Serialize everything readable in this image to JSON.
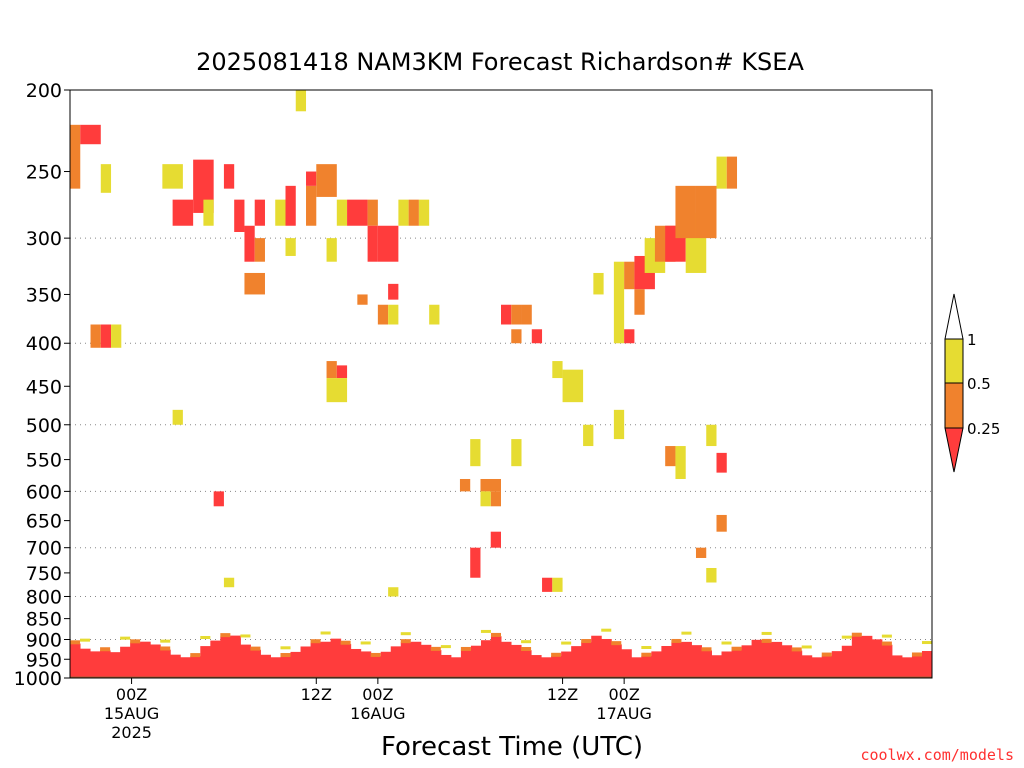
{
  "chart_data": {
    "type": "heatmap",
    "title": "2025081418 NAM3KM Forecast Richardson# KSEA",
    "xlabel": "Forecast Time (UTC)",
    "ylabel": "",
    "y_scale": "log",
    "y_reversed": true,
    "ylim": [
      1000,
      200
    ],
    "y_ticks": [
      200,
      250,
      300,
      350,
      400,
      450,
      500,
      550,
      600,
      650,
      700,
      750,
      800,
      850,
      900,
      950,
      1000
    ],
    "grid_levels": [
      300,
      400,
      500,
      600,
      700,
      800,
      900
    ],
    "x_range_hours": [
      0,
      84
    ],
    "x_ticks": [
      {
        "hour": 6,
        "lines": [
          "00Z",
          "15AUG",
          "2025"
        ]
      },
      {
        "hour": 24,
        "lines": [
          "12Z",
          "",
          ""
        ]
      },
      {
        "hour": 30,
        "lines": [
          "00Z",
          "16AUG",
          ""
        ]
      },
      {
        "hour": 48,
        "lines": [
          "12Z",
          "",
          ""
        ]
      },
      {
        "hour": 54,
        "lines": [
          "00Z",
          "17AUG",
          ""
        ]
      }
    ],
    "legend": {
      "placement": "right",
      "labels": [
        "1",
        "0.5",
        "0.25"
      ],
      "bins": [
        {
          "range": "0.5-1",
          "color": "#e6dc32"
        },
        {
          "range": "0.25-0.5",
          "color": "#f0822d"
        },
        {
          "range": "<0.25",
          "color": "#ff3c3c"
        },
        {
          "range": ">1",
          "color": "#ffffff"
        }
      ]
    },
    "ground_color": "#a0522d",
    "patches": [
      {
        "t": [
          0,
          1
        ],
        "p": [
          220,
          262
        ],
        "c": "orange"
      },
      {
        "t": [
          1,
          3
        ],
        "p": [
          220,
          232
        ],
        "c": "red"
      },
      {
        "t": [
          3,
          4
        ],
        "p": [
          245,
          265
        ],
        "c": "yellow"
      },
      {
        "t": [
          2,
          3
        ],
        "p": [
          380,
          405
        ],
        "c": "orange"
      },
      {
        "t": [
          3,
          4
        ],
        "p": [
          380,
          405
        ],
        "c": "red"
      },
      {
        "t": [
          4,
          5
        ],
        "p": [
          380,
          405
        ],
        "c": "yellow"
      },
      {
        "t": [
          9,
          11
        ],
        "p": [
          245,
          262
        ],
        "c": "yellow"
      },
      {
        "t": [
          10,
          12
        ],
        "p": [
          270,
          290
        ],
        "c": "red"
      },
      {
        "t": [
          12,
          14
        ],
        "p": [
          242,
          280
        ],
        "c": "red"
      },
      {
        "t": [
          13,
          14
        ],
        "p": [
          270,
          290
        ],
        "c": "yellow"
      },
      {
        "t": [
          15,
          16
        ],
        "p": [
          245,
          262
        ],
        "c": "red"
      },
      {
        "t": [
          16,
          17
        ],
        "p": [
          270,
          295
        ],
        "c": "red"
      },
      {
        "t": [
          17,
          18
        ],
        "p": [
          290,
          320
        ],
        "c": "red"
      },
      {
        "t": [
          17,
          19
        ],
        "p": [
          330,
          350
        ],
        "c": "orange"
      },
      {
        "t": [
          18,
          19
        ],
        "p": [
          270,
          290
        ],
        "c": "red"
      },
      {
        "t": [
          18,
          19
        ],
        "p": [
          300,
          320
        ],
        "c": "orange"
      },
      {
        "t": [
          20,
          21
        ],
        "p": [
          270,
          290
        ],
        "c": "yellow"
      },
      {
        "t": [
          21,
          22
        ],
        "p": [
          260,
          290
        ],
        "c": "red"
      },
      {
        "t": [
          21,
          22
        ],
        "p": [
          300,
          315
        ],
        "c": "yellow"
      },
      {
        "t": [
          22,
          23
        ],
        "p": [
          200,
          212
        ],
        "c": "yellow"
      },
      {
        "t": [
          23,
          24
        ],
        "p": [
          260,
          290
        ],
        "c": "orange"
      },
      {
        "t": [
          23,
          24
        ],
        "p": [
          250,
          260
        ],
        "c": "red"
      },
      {
        "t": [
          24,
          26
        ],
        "p": [
          245,
          268
        ],
        "c": "orange"
      },
      {
        "t": [
          25,
          26
        ],
        "p": [
          300,
          320
        ],
        "c": "yellow"
      },
      {
        "t": [
          26,
          27
        ],
        "p": [
          270,
          290
        ],
        "c": "yellow"
      },
      {
        "t": [
          27,
          29
        ],
        "p": [
          270,
          290
        ],
        "c": "red"
      },
      {
        "t": [
          29,
          30
        ],
        "p": [
          270,
          290
        ],
        "c": "orange"
      },
      {
        "t": [
          29,
          30
        ],
        "p": [
          290,
          320
        ],
        "c": "red"
      },
      {
        "t": [
          30,
          32
        ],
        "p": [
          290,
          320
        ],
        "c": "red"
      },
      {
        "t": [
          32,
          33
        ],
        "p": [
          270,
          290
        ],
        "c": "yellow"
      },
      {
        "t": [
          33,
          34
        ],
        "p": [
          270,
          290
        ],
        "c": "orange"
      },
      {
        "t": [
          34,
          35
        ],
        "p": [
          270,
          290
        ],
        "c": "yellow"
      },
      {
        "t": [
          28,
          29
        ],
        "p": [
          350,
          360
        ],
        "c": "orange"
      },
      {
        "t": [
          25,
          26
        ],
        "p": [
          420,
          440
        ],
        "c": "orange"
      },
      {
        "t": [
          26,
          27
        ],
        "p": [
          425,
          440
        ],
        "c": "red"
      },
      {
        "t": [
          25,
          27
        ],
        "p": [
          440,
          470
        ],
        "c": "yellow"
      },
      {
        "t": [
          31,
          32
        ],
        "p": [
          340,
          355
        ],
        "c": "red"
      },
      {
        "t": [
          30,
          31
        ],
        "p": [
          360,
          380
        ],
        "c": "orange"
      },
      {
        "t": [
          31,
          32
        ],
        "p": [
          360,
          380
        ],
        "c": "yellow"
      },
      {
        "t": [
          35,
          36
        ],
        "p": [
          360,
          380
        ],
        "c": "yellow"
      },
      {
        "t": [
          42,
          43
        ],
        "p": [
          360,
          380
        ],
        "c": "red"
      },
      {
        "t": [
          43,
          44
        ],
        "p": [
          360,
          380
        ],
        "c": "orange"
      },
      {
        "t": [
          44,
          45
        ],
        "p": [
          360,
          380
        ],
        "c": "orange"
      },
      {
        "t": [
          45,
          46
        ],
        "p": [
          385,
          400
        ],
        "c": "red"
      },
      {
        "t": [
          43,
          44
        ],
        "p": [
          385,
          400
        ],
        "c": "orange"
      },
      {
        "t": [
          47,
          48
        ],
        "p": [
          420,
          440
        ],
        "c": "yellow"
      },
      {
        "t": [
          48,
          50
        ],
        "p": [
          430,
          470
        ],
        "c": "yellow"
      },
      {
        "t": [
          51,
          52
        ],
        "p": [
          330,
          350
        ],
        "c": "yellow"
      },
      {
        "t": [
          53,
          54
        ],
        "p": [
          320,
          400
        ],
        "c": "yellow"
      },
      {
        "t": [
          54,
          55
        ],
        "p": [
          320,
          345
        ],
        "c": "orange"
      },
      {
        "t": [
          54,
          55
        ],
        "p": [
          385,
          400
        ],
        "c": "red"
      },
      {
        "t": [
          55,
          56
        ],
        "p": [
          345,
          370
        ],
        "c": "orange"
      },
      {
        "t": [
          55,
          57
        ],
        "p": [
          315,
          345
        ],
        "c": "red"
      },
      {
        "t": [
          56,
          58
        ],
        "p": [
          300,
          330
        ],
        "c": "yellow"
      },
      {
        "t": [
          57,
          59
        ],
        "p": [
          290,
          320
        ],
        "c": "orange"
      },
      {
        "t": [
          58,
          60
        ],
        "p": [
          290,
          320
        ],
        "c": "red"
      },
      {
        "t": [
          60,
          62
        ],
        "p": [
          280,
          330
        ],
        "c": "yellow"
      },
      {
        "t": [
          59,
          61
        ],
        "p": [
          260,
          300
        ],
        "c": "orange"
      },
      {
        "t": [
          61,
          63
        ],
        "p": [
          260,
          300
        ],
        "c": "orange"
      },
      {
        "t": [
          63,
          64
        ],
        "p": [
          240,
          262
        ],
        "c": "yellow"
      },
      {
        "t": [
          64,
          65
        ],
        "p": [
          240,
          262
        ],
        "c": "orange"
      },
      {
        "t": [
          10,
          11
        ],
        "p": [
          480,
          500
        ],
        "c": "yellow"
      },
      {
        "t": [
          31,
          32
        ],
        "p": [
          780,
          800
        ],
        "c": "yellow"
      },
      {
        "t": [
          38,
          39
        ],
        "p": [
          580,
          600
        ],
        "c": "orange"
      },
      {
        "t": [
          39,
          40
        ],
        "p": [
          520,
          560
        ],
        "c": "yellow"
      },
      {
        "t": [
          40,
          42
        ],
        "p": [
          580,
          600
        ],
        "c": "orange"
      },
      {
        "t": [
          41,
          42
        ],
        "p": [
          600,
          625
        ],
        "c": "orange"
      },
      {
        "t": [
          40,
          41
        ],
        "p": [
          600,
          625
        ],
        "c": "yellow"
      },
      {
        "t": [
          43,
          44
        ],
        "p": [
          520,
          560
        ],
        "c": "yellow"
      },
      {
        "t": [
          39,
          40
        ],
        "p": [
          700,
          760
        ],
        "c": "red"
      },
      {
        "t": [
          41,
          42
        ],
        "p": [
          670,
          700
        ],
        "c": "red"
      },
      {
        "t": [
          50,
          51
        ],
        "p": [
          500,
          530
        ],
        "c": "yellow"
      },
      {
        "t": [
          53,
          54
        ],
        "p": [
          480,
          520
        ],
        "c": "yellow"
      },
      {
        "t": [
          58,
          59
        ],
        "p": [
          530,
          560
        ],
        "c": "orange"
      },
      {
        "t": [
          59,
          60
        ],
        "p": [
          530,
          580
        ],
        "c": "yellow"
      },
      {
        "t": [
          62,
          63
        ],
        "p": [
          500,
          530
        ],
        "c": "yellow"
      },
      {
        "t": [
          63,
          64
        ],
        "p": [
          540,
          570
        ],
        "c": "red"
      },
      {
        "t": [
          63,
          64
        ],
        "p": [
          640,
          670
        ],
        "c": "orange"
      },
      {
        "t": [
          61,
          62
        ],
        "p": [
          700,
          720
        ],
        "c": "orange"
      },
      {
        "t": [
          62,
          63
        ],
        "p": [
          740,
          770
        ],
        "c": "yellow"
      },
      {
        "t": [
          46,
          47
        ],
        "p": [
          760,
          790
        ],
        "c": "red"
      },
      {
        "t": [
          47,
          48
        ],
        "p": [
          760,
          790
        ],
        "c": "yellow"
      },
      {
        "t": [
          14,
          15
        ],
        "p": [
          600,
          625
        ],
        "c": "red"
      },
      {
        "t": [
          15,
          16
        ],
        "p": [
          760,
          780
        ],
        "c": "yellow"
      }
    ]
  }
}
